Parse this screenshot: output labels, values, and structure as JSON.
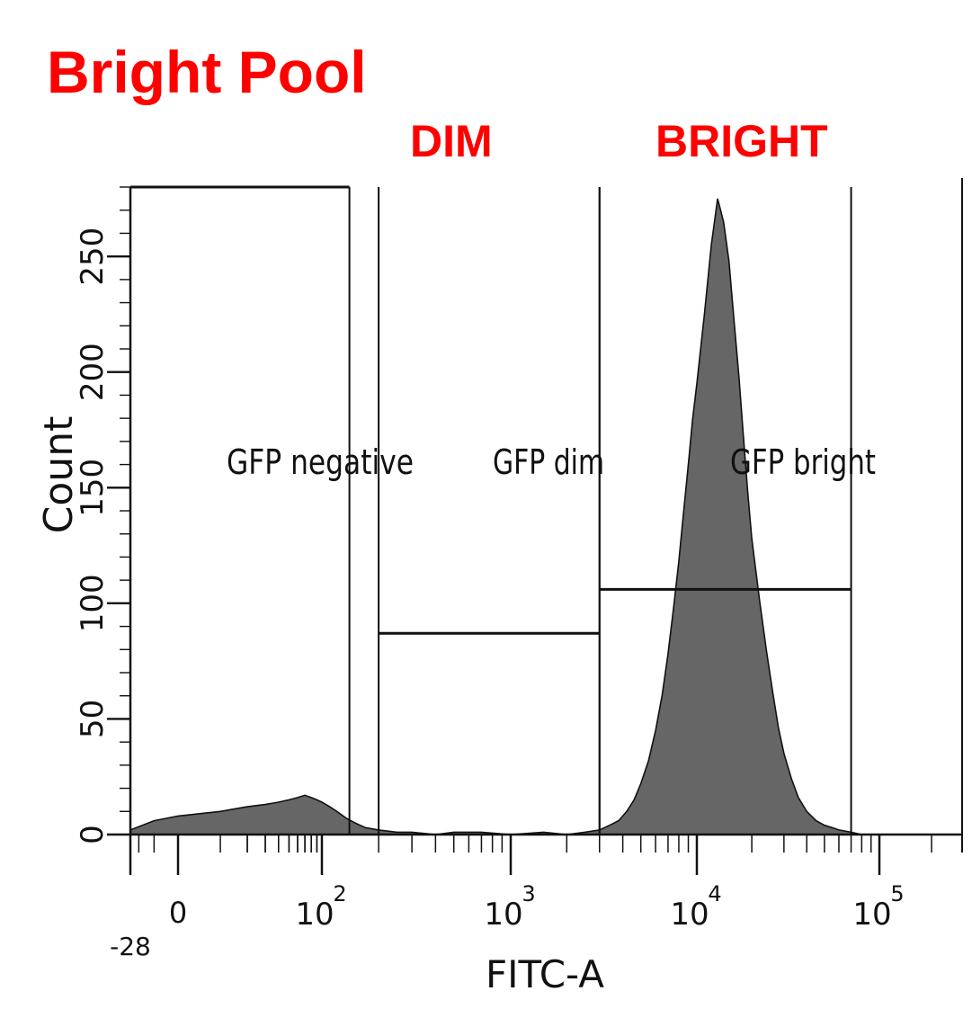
{
  "header": {
    "title": "Bright Pool",
    "tag_dim": "DIM",
    "tag_bright": "BRIGHT"
  },
  "colors": {
    "title": "#ff0000",
    "fill": "#666666",
    "line": "#111111"
  },
  "chart_data": {
    "type": "area",
    "xlabel": "FITC-A",
    "ylabel": "Count",
    "x_scale": "biexponential",
    "ylim": [
      0,
      280
    ],
    "x_ticks": [
      {
        "label": "-28",
        "value": -28
      },
      {
        "label": "0",
        "value": 0
      },
      {
        "label": "10^2",
        "base": "10",
        "exp": "2",
        "value": 100
      },
      {
        "label": "10^3",
        "base": "10",
        "exp": "3",
        "value": 1000
      },
      {
        "label": "10^4",
        "base": "10",
        "exp": "4",
        "value": 10000
      },
      {
        "label": "10^5",
        "base": "10",
        "exp": "5",
        "value": 100000
      }
    ],
    "y_ticks": [
      {
        "label": "0",
        "value": 0
      },
      {
        "label": "50",
        "value": 50
      },
      {
        "label": "100",
        "value": 100
      },
      {
        "label": "150",
        "value": 150
      },
      {
        "label": "200",
        "value": 200
      },
      {
        "label": "250",
        "value": 250
      }
    ],
    "series": [
      {
        "x": [
          -28,
          -10,
          0,
          10,
          20,
          30,
          40,
          50,
          60,
          70,
          80,
          90,
          100,
          110,
          120,
          135,
          150,
          170,
          200,
          250,
          300,
          400,
          500,
          700,
          1000,
          1500,
          2000,
          2500,
          3000,
          3400,
          3800,
          4200,
          4600,
          5000,
          5500,
          6000,
          6500,
          7000,
          7500,
          8000,
          8500,
          9000,
          9500,
          10000,
          11000,
          12000,
          13000,
          14000,
          15000,
          16000,
          17000,
          18000,
          19000,
          20000,
          22000,
          24000,
          26000,
          28000,
          30000,
          33000,
          36000,
          40000,
          45000,
          50000,
          55000,
          60000,
          70000,
          80000,
          100000
        ],
        "y": [
          2,
          6,
          8,
          10,
          12,
          13,
          14,
          15,
          16,
          17,
          16,
          15,
          14,
          12,
          10,
          7,
          5,
          3,
          2,
          1,
          1,
          0,
          1,
          1,
          0,
          1,
          0,
          1,
          2,
          4,
          6,
          10,
          15,
          22,
          32,
          45,
          60,
          78,
          98,
          118,
          140,
          160,
          180,
          195,
          225,
          255,
          275,
          265,
          248,
          222,
          198,
          172,
          148,
          128,
          102,
          80,
          62,
          46,
          35,
          24,
          16,
          10,
          6,
          4,
          3,
          2,
          1,
          0,
          0
        ]
      }
    ],
    "gates": [
      {
        "label": "GFP negative",
        "x_min": -28,
        "x_max": 140,
        "y": 280
      },
      {
        "label": "GFP dim",
        "x_min": 200,
        "x_max": 3000,
        "y": 87
      },
      {
        "label": "GFP bright",
        "x_min": 3000,
        "x_max": 70000,
        "y": 106
      }
    ],
    "grid": false,
    "legend": "none"
  }
}
